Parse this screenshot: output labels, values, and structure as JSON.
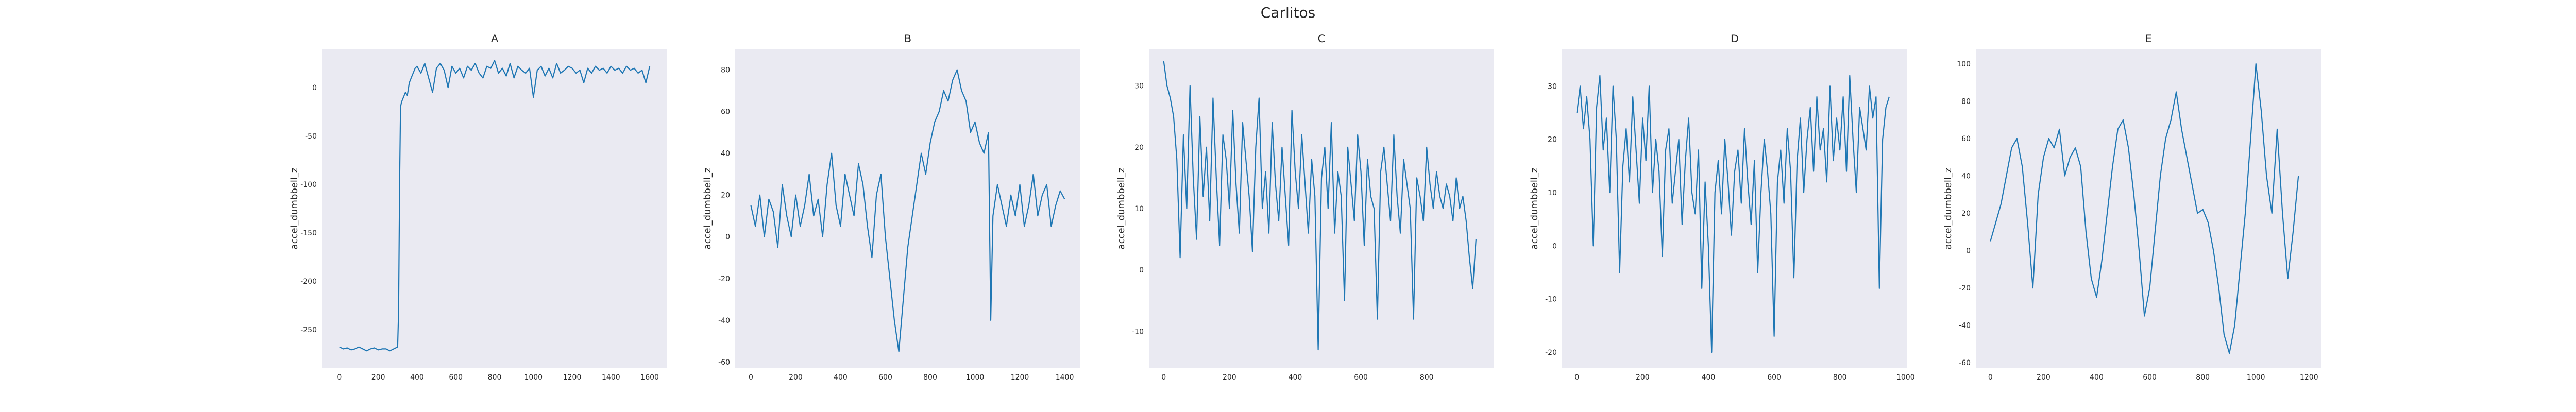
{
  "figure": {
    "title": "Carlitos"
  },
  "chart_data": [
    {
      "type": "line",
      "title": "A",
      "xlabel": "",
      "ylabel": "accel_dumbbell_z",
      "xlim": [
        -90,
        1690
      ],
      "ylim": [
        -290,
        40
      ],
      "xticks": [
        0,
        200,
        400,
        600,
        800,
        1000,
        1200,
        1400,
        1600
      ],
      "yticks": [
        -250,
        -200,
        -150,
        -100,
        -50,
        0
      ],
      "line_color": "#1f77b4",
      "grid": false,
      "x": [
        0,
        20,
        40,
        60,
        80,
        100,
        120,
        140,
        160,
        180,
        200,
        220,
        240,
        260,
        280,
        300,
        305,
        310,
        315,
        320,
        330,
        340,
        350,
        360,
        370,
        380,
        390,
        400,
        420,
        440,
        460,
        480,
        500,
        520,
        540,
        560,
        580,
        600,
        620,
        640,
        660,
        680,
        700,
        720,
        740,
        760,
        780,
        800,
        820,
        840,
        860,
        880,
        900,
        920,
        940,
        960,
        980,
        1000,
        1020,
        1040,
        1060,
        1080,
        1100,
        1120,
        1140,
        1160,
        1180,
        1200,
        1220,
        1240,
        1260,
        1280,
        1300,
        1320,
        1340,
        1360,
        1380,
        1400,
        1420,
        1440,
        1460,
        1480,
        1500,
        1520,
        1540,
        1560,
        1580,
        1600
      ],
      "y": [
        -268,
        -270,
        -269,
        -271,
        -270,
        -268,
        -270,
        -272,
        -270,
        -269,
        -271,
        -270,
        -270,
        -272,
        -270,
        -268,
        -230,
        -100,
        -20,
        -15,
        -10,
        -5,
        -8,
        5,
        10,
        15,
        20,
        22,
        15,
        25,
        10,
        -5,
        20,
        25,
        18,
        0,
        22,
        15,
        20,
        10,
        22,
        18,
        25,
        15,
        10,
        22,
        20,
        28,
        15,
        20,
        12,
        25,
        10,
        22,
        18,
        15,
        20,
        -10,
        18,
        22,
        12,
        20,
        10,
        25,
        15,
        18,
        22,
        20,
        15,
        18,
        5,
        20,
        15,
        22,
        18,
        20,
        15,
        22,
        18,
        20,
        15,
        22,
        18,
        20,
        15,
        18,
        5,
        22
      ]
    },
    {
      "type": "line",
      "title": "B",
      "xlabel": "",
      "ylabel": "accel_dumbbell_z",
      "xlim": [
        -70,
        1470
      ],
      "ylim": [
        -63,
        90
      ],
      "xticks": [
        0,
        200,
        400,
        600,
        800,
        1000,
        1200,
        1400
      ],
      "yticks": [
        -60,
        -40,
        -20,
        0,
        20,
        40,
        60,
        80
      ],
      "line_color": "#1f77b4",
      "grid": false,
      "x": [
        0,
        20,
        40,
        60,
        80,
        100,
        120,
        140,
        160,
        180,
        200,
        220,
        240,
        260,
        280,
        300,
        320,
        340,
        360,
        380,
        400,
        420,
        440,
        460,
        480,
        500,
        520,
        540,
        560,
        580,
        600,
        620,
        640,
        660,
        680,
        700,
        720,
        740,
        760,
        780,
        800,
        820,
        840,
        860,
        880,
        900,
        920,
        940,
        960,
        980,
        1000,
        1020,
        1040,
        1060,
        1070,
        1080,
        1100,
        1120,
        1140,
        1160,
        1180,
        1200,
        1220,
        1240,
        1260,
        1280,
        1300,
        1320,
        1340,
        1360,
        1380,
        1400
      ],
      "y": [
        15,
        5,
        20,
        0,
        18,
        12,
        -5,
        25,
        10,
        0,
        20,
        5,
        15,
        30,
        10,
        18,
        0,
        25,
        40,
        15,
        5,
        30,
        20,
        10,
        35,
        25,
        5,
        -10,
        20,
        30,
        0,
        -20,
        -40,
        -55,
        -30,
        -5,
        10,
        25,
        40,
        30,
        45,
        55,
        60,
        70,
        65,
        75,
        80,
        70,
        65,
        50,
        55,
        45,
        40,
        50,
        -40,
        10,
        25,
        15,
        5,
        20,
        10,
        25,
        5,
        15,
        30,
        10,
        20,
        25,
        5,
        15,
        22,
        18
      ]
    },
    {
      "type": "line",
      "title": "C",
      "xlabel": "",
      "ylabel": "accel_dumbbell_z",
      "xlim": [
        -45,
        1005
      ],
      "ylim": [
        -16,
        36
      ],
      "xticks": [
        0,
        200,
        400,
        600,
        800
      ],
      "yticks": [
        -10,
        0,
        10,
        20,
        30
      ],
      "line_color": "#1f77b4",
      "grid": false,
      "x": [
        0,
        10,
        20,
        30,
        40,
        50,
        60,
        70,
        80,
        90,
        100,
        110,
        120,
        130,
        140,
        150,
        160,
        170,
        180,
        190,
        200,
        210,
        220,
        230,
        240,
        250,
        260,
        270,
        280,
        290,
        300,
        310,
        320,
        330,
        340,
        350,
        360,
        370,
        380,
        390,
        400,
        410,
        420,
        430,
        440,
        450,
        460,
        470,
        480,
        490,
        500,
        510,
        520,
        530,
        540,
        550,
        560,
        570,
        580,
        590,
        600,
        610,
        620,
        630,
        640,
        650,
        660,
        670,
        680,
        690,
        700,
        710,
        720,
        730,
        740,
        750,
        760,
        770,
        780,
        790,
        800,
        810,
        820,
        830,
        840,
        850,
        860,
        870,
        880,
        890,
        900,
        910,
        920,
        930,
        940,
        950
      ],
      "y": [
        34,
        30,
        28,
        25,
        18,
        2,
        22,
        10,
        30,
        15,
        5,
        25,
        12,
        20,
        8,
        28,
        15,
        4,
        22,
        18,
        10,
        26,
        14,
        6,
        24,
        18,
        12,
        3,
        20,
        28,
        10,
        16,
        6,
        24,
        14,
        8,
        20,
        12,
        4,
        26,
        16,
        10,
        22,
        14,
        6,
        18,
        12,
        -13,
        15,
        20,
        10,
        24,
        6,
        16,
        12,
        -5,
        20,
        14,
        8,
        22,
        16,
        4,
        18,
        12,
        10,
        -8,
        16,
        20,
        14,
        8,
        22,
        12,
        6,
        18,
        14,
        10,
        -8,
        15,
        12,
        8,
        20,
        14,
        10,
        16,
        12,
        10,
        14,
        12,
        8,
        15,
        10,
        12,
        8,
        2,
        -3,
        5
      ]
    },
    {
      "type": "line",
      "title": "D",
      "xlabel": "",
      "ylabel": "accel_dumbbell_z",
      "xlim": [
        -45,
        1005
      ],
      "ylim": [
        -23,
        37
      ],
      "xticks": [
        0,
        200,
        400,
        600,
        800,
        1000
      ],
      "yticks": [
        -20,
        -10,
        0,
        10,
        20,
        30
      ],
      "line_color": "#1f77b4",
      "grid": false,
      "x": [
        0,
        10,
        20,
        30,
        40,
        50,
        60,
        70,
        80,
        90,
        100,
        110,
        120,
        130,
        140,
        150,
        160,
        170,
        180,
        190,
        200,
        210,
        220,
        230,
        240,
        250,
        260,
        270,
        280,
        290,
        300,
        310,
        320,
        330,
        340,
        350,
        360,
        370,
        380,
        390,
        400,
        410,
        420,
        430,
        440,
        450,
        460,
        470,
        480,
        490,
        500,
        510,
        520,
        530,
        540,
        550,
        560,
        570,
        580,
        590,
        600,
        610,
        620,
        630,
        640,
        650,
        660,
        670,
        680,
        690,
        700,
        710,
        720,
        730,
        740,
        750,
        760,
        770,
        780,
        790,
        800,
        810,
        820,
        830,
        840,
        850,
        860,
        870,
        880,
        890,
        900,
        910,
        920,
        930,
        940,
        950
      ],
      "y": [
        25,
        30,
        22,
        28,
        20,
        0,
        26,
        32,
        18,
        24,
        10,
        30,
        20,
        -5,
        15,
        22,
        12,
        28,
        18,
        8,
        24,
        16,
        30,
        10,
        20,
        14,
        -2,
        18,
        22,
        8,
        14,
        20,
        4,
        16,
        24,
        10,
        6,
        18,
        -8,
        12,
        0,
        -20,
        10,
        16,
        6,
        20,
        12,
        2,
        14,
        18,
        8,
        22,
        12,
        4,
        16,
        -5,
        10,
        20,
        14,
        6,
        -17,
        12,
        18,
        8,
        22,
        14,
        -6,
        16,
        24,
        10,
        20,
        26,
        14,
        28,
        18,
        22,
        12,
        30,
        16,
        24,
        18,
        28,
        14,
        32,
        20,
        10,
        26,
        22,
        18,
        30,
        24,
        28,
        -8,
        20,
        26,
        28
      ]
    },
    {
      "type": "line",
      "title": "E",
      "xlabel": "",
      "ylabel": "accel_dumbbell_z",
      "xlim": [
        -55,
        1245
      ],
      "ylim": [
        -63,
        108
      ],
      "xticks": [
        0,
        200,
        400,
        600,
        800,
        1000,
        1200
      ],
      "yticks": [
        -60,
        -40,
        -20,
        0,
        20,
        40,
        60,
        80,
        100
      ],
      "line_color": "#1f77b4",
      "grid": false,
      "x": [
        0,
        20,
        40,
        60,
        80,
        100,
        120,
        140,
        160,
        180,
        200,
        220,
        240,
        260,
        280,
        300,
        320,
        340,
        360,
        380,
        400,
        420,
        440,
        460,
        480,
        500,
        520,
        540,
        560,
        580,
        600,
        620,
        640,
        660,
        680,
        700,
        720,
        740,
        760,
        780,
        800,
        820,
        840,
        860,
        880,
        900,
        920,
        940,
        960,
        980,
        1000,
        1020,
        1040,
        1060,
        1080,
        1100,
        1120,
        1140,
        1160
      ],
      "y": [
        5,
        15,
        25,
        40,
        55,
        60,
        45,
        15,
        -20,
        30,
        50,
        60,
        55,
        65,
        40,
        50,
        55,
        45,
        10,
        -15,
        -25,
        -5,
        20,
        45,
        65,
        70,
        55,
        30,
        0,
        -35,
        -20,
        10,
        40,
        60,
        70,
        85,
        65,
        50,
        35,
        20,
        22,
        15,
        0,
        -20,
        -45,
        -55,
        -40,
        -10,
        20,
        60,
        100,
        75,
        40,
        20,
        65,
        20,
        -15,
        10,
        40
      ]
    }
  ]
}
